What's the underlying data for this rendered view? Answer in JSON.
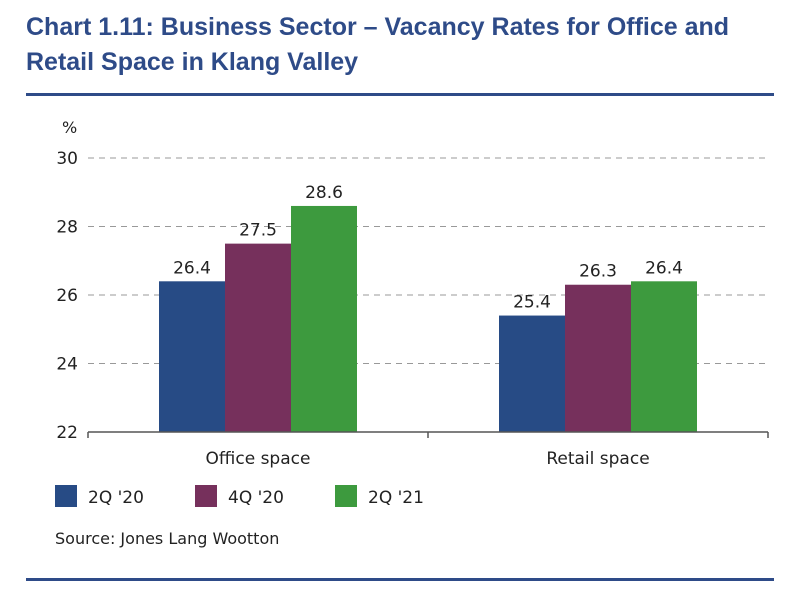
{
  "title": "Chart 1.11: Business Sector – Vacancy Rates for Office and Retail Space in Klang Valley",
  "source": "Source: Jones Lang Wootton",
  "chart_data": {
    "type": "bar",
    "title": "Chart 1.11: Business Sector – Vacancy Rates for Office and Retail Space in Klang Valley",
    "ylabel": "%",
    "xlabel": "",
    "ylim": [
      22,
      30
    ],
    "yticks": [
      22,
      24,
      26,
      28,
      30
    ],
    "grid": true,
    "legend_placement": "bottom-left",
    "categories": [
      "Office space",
      "Retail space"
    ],
    "series": [
      {
        "name": "2Q '20",
        "color": "#274b85",
        "values": [
          26.4,
          25.4
        ]
      },
      {
        "name": "4Q '20",
        "color": "#76305c",
        "values": [
          27.5,
          26.3
        ]
      },
      {
        "name": "2Q '21",
        "color": "#3d9a3e",
        "values": [
          28.6,
          26.4
        ]
      }
    ]
  }
}
